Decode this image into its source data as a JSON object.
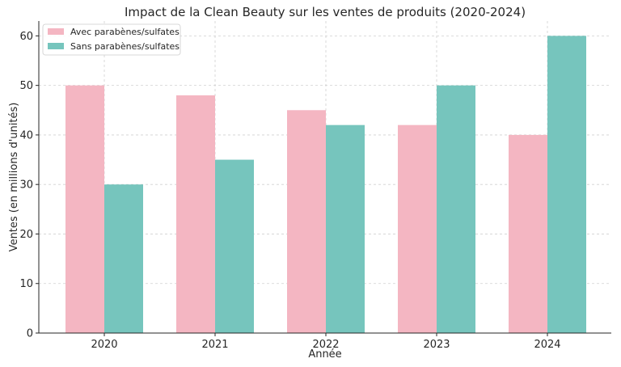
{
  "chart_data": {
    "type": "bar",
    "title": "Impact de la Clean Beauty sur les ventes de produits (2020-2024)",
    "xlabel": "Année",
    "ylabel": "Ventes (en millions d'unités)",
    "categories": [
      "2020",
      "2021",
      "2022",
      "2023",
      "2024"
    ],
    "ylim": [
      0,
      63
    ],
    "yticks": [
      0,
      10,
      20,
      30,
      40,
      50,
      60
    ],
    "grid": true,
    "legend_position": "top-left",
    "series": [
      {
        "name": "Avec parabènes/sulfates",
        "values": [
          50,
          48,
          45,
          42,
          40
        ],
        "color": "#f4b6c2"
      },
      {
        "name": "Sans parabènes/sulfates",
        "values": [
          30,
          35,
          42,
          50,
          60
        ],
        "color": "#76c5bd"
      }
    ]
  }
}
